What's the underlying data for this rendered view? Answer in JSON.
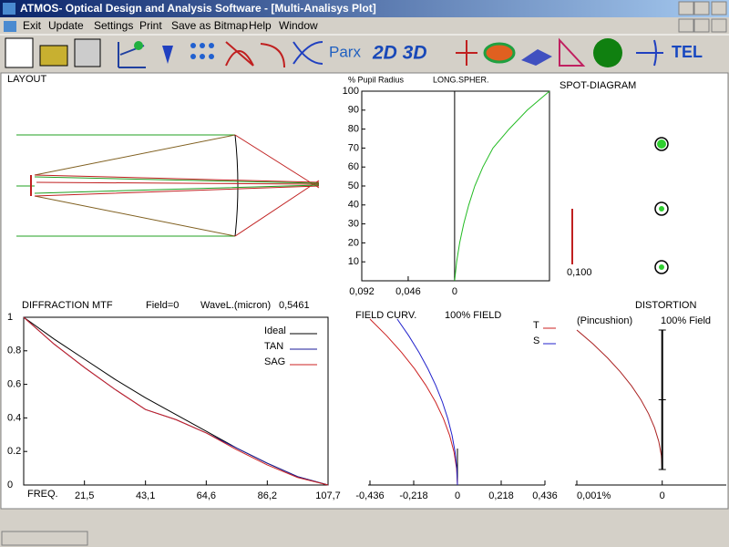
{
  "window": {
    "title": "ATMOS- Optical Design and Analysis Software - [Multi-Analisys Plot]"
  },
  "menu": [
    "Exit",
    "Update",
    "Settings",
    "Print",
    "Save as Bitmap",
    "Help",
    "Window"
  ],
  "toolbar": [
    "Parx",
    "2D 3D",
    "TEL"
  ],
  "layout": {
    "title": "LAYOUT"
  },
  "spot_diagram": {
    "title": "SPOT-DIAGRAM",
    "scale_label": "0,100"
  },
  "chart_data": [
    {
      "type": "line",
      "title": "LONG.SPHER.",
      "ylabel": "% Pupil Radius",
      "xlim": [
        0.092,
        -0.094
      ],
      "xticks": [
        {
          "value": 0.092,
          "label": "0,092"
        },
        {
          "value": 0.046,
          "label": "0,046"
        },
        0
      ],
      "ylim": [
        0,
        100
      ],
      "yticks": [
        10,
        20,
        30,
        40,
        50,
        60,
        70,
        80,
        90,
        100
      ],
      "series": [
        {
          "color": "#22bb22",
          "x": [
            0,
            -0.002,
            -0.005,
            -0.009,
            -0.014,
            -0.02,
            -0.028,
            -0.038,
            -0.054,
            -0.072,
            -0.094
          ],
          "values": [
            0,
            10,
            20,
            30,
            40,
            50,
            60,
            70,
            80,
            90,
            100
          ]
        }
      ]
    },
    {
      "type": "line",
      "title": "DIFFRACTION  MTF",
      "annotations": [
        "Field=0",
        "WaveL.(micron)",
        "0,5461"
      ],
      "xlabel": "FREQ.",
      "xlim": [
        0,
        107.7
      ],
      "xticks": [
        {
          "value": 21.5,
          "label": "21,5"
        },
        {
          "value": 43.1,
          "label": "43,1"
        },
        {
          "value": 64.6,
          "label": "64,6"
        },
        {
          "value": 86.2,
          "label": "86,2"
        },
        {
          "value": 107.7,
          "label": "107,7"
        }
      ],
      "ylim": [
        0,
        1
      ],
      "yticks": [
        0,
        0.2,
        0.4,
        0.6,
        0.8,
        1
      ],
      "x": [
        0,
        10.77,
        21.54,
        32.31,
        43.08,
        53.85,
        64.62,
        75.39,
        86.16,
        96.93,
        107.7
      ],
      "series": [
        {
          "name": "Ideal",
          "color": "#000000",
          "values": [
            1,
            0.87,
            0.75,
            0.63,
            0.52,
            0.42,
            0.32,
            0.22,
            0.13,
            0.05,
            0
          ]
        },
        {
          "name": "TAN",
          "color": "#1a1a9a",
          "values": [
            1,
            0.84,
            0.7,
            0.57,
            0.45,
            0.39,
            0.31,
            0.22,
            0.13,
            0.05,
            0
          ]
        },
        {
          "name": "SAG",
          "color": "#cc2222",
          "values": [
            1,
            0.84,
            0.7,
            0.57,
            0.45,
            0.39,
            0.31,
            0.21,
            0.12,
            0.045,
            0
          ]
        }
      ]
    },
    {
      "type": "line",
      "title": "FIELD CURV.",
      "subtitle": "100% FIELD",
      "xlim": [
        -0.436,
        0.436
      ],
      "xticks": [
        {
          "value": -0.436,
          "label": "-0,436"
        },
        {
          "value": -0.218,
          "label": "-0,218"
        },
        0,
        {
          "value": 0.218,
          "label": "0,218"
        },
        {
          "value": 0.436,
          "label": "0,436"
        }
      ],
      "ylim": [
        0,
        1
      ],
      "series": [
        {
          "name": "T",
          "color": "#cc2222",
          "x": [
            0,
            -0.0044,
            -0.0174,
            -0.0392,
            -0.0698,
            -0.109,
            -0.157,
            -0.2136,
            -0.279,
            -0.3532,
            -0.436
          ],
          "values": [
            0,
            0.1,
            0.2,
            0.3,
            0.4,
            0.5,
            0.6,
            0.7,
            0.8,
            0.9,
            1
          ]
        },
        {
          "name": "S",
          "color": "#2222cc",
          "x": [
            0,
            -0.003,
            -0.012,
            -0.027,
            -0.048,
            -0.075,
            -0.108,
            -0.147,
            -0.192,
            -0.243,
            -0.3
          ],
          "values": [
            0,
            0.1,
            0.2,
            0.3,
            0.4,
            0.5,
            0.6,
            0.7,
            0.8,
            0.9,
            1
          ]
        }
      ]
    },
    {
      "type": "line",
      "title": "DISTORTION",
      "subtitle": "(Pincushion)",
      "annotation": "100% Field",
      "xlim": [
        0.001,
        -0.00075
      ],
      "xticks": [
        {
          "value": 0.001,
          "label": "0,001%"
        },
        0
      ],
      "ylim": [
        0,
        1
      ],
      "series": [
        {
          "color": "#aa2222",
          "x": [
            0,
            1e-05,
            4e-05,
            9e-05,
            0.00016,
            0.00025,
            0.00036,
            0.00049,
            0.00064,
            0.00081,
            0.001
          ],
          "values": [
            0,
            0.1,
            0.2,
            0.3,
            0.4,
            0.5,
            0.6,
            0.7,
            0.8,
            0.9,
            1
          ]
        }
      ]
    }
  ]
}
